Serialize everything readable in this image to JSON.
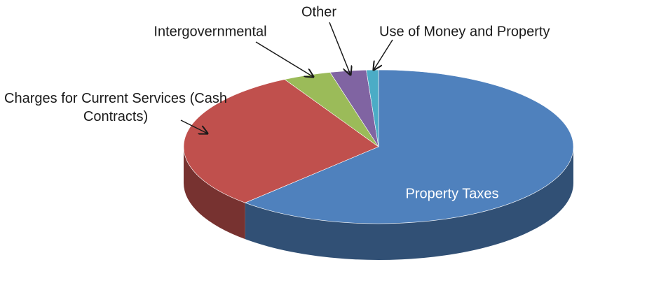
{
  "chart_data": {
    "type": "pie3d",
    "categories": [
      "Property Taxes",
      "Charges for Current Services (Cash Contracts)",
      "Intergovernmental",
      "Other",
      "Use of Money and Property"
    ],
    "values": [
      62,
      30,
      4,
      3,
      1
    ],
    "colors": [
      "#4f81bd",
      "#c0504d",
      "#9bbb59",
      "#8064a2",
      "#4bacc6"
    ]
  }
}
